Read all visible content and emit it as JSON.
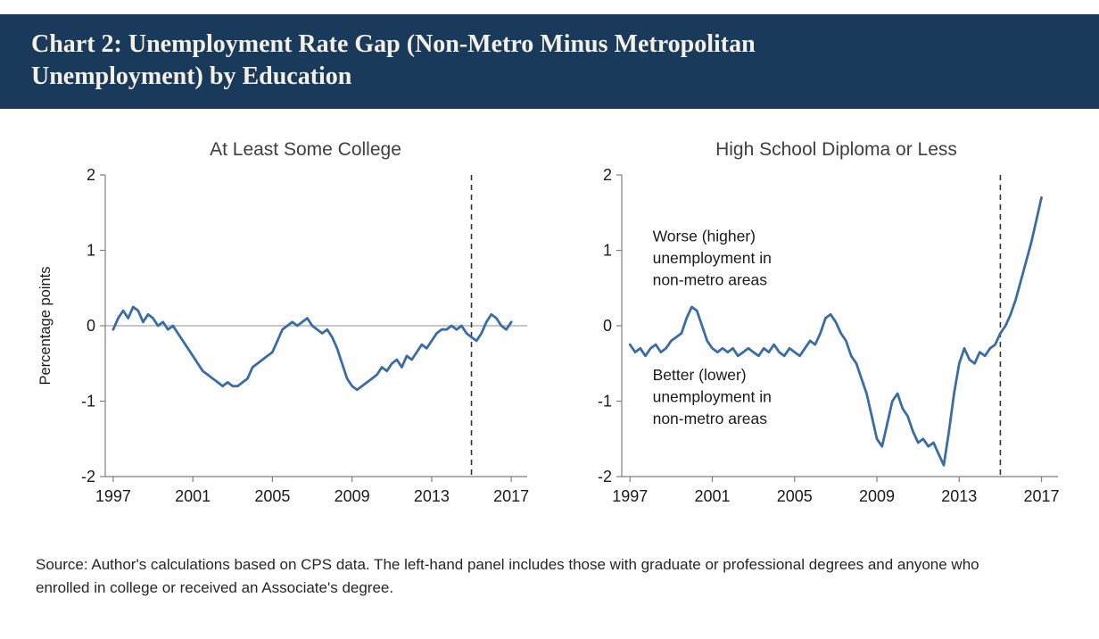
{
  "header": {
    "title": "Chart 2: Unemployment Rate Gap (Non-Metro Minus Metropolitan Unemployment) by Education"
  },
  "source": {
    "text": "Source: Author's calculations based on CPS data. The left-hand panel includes those with graduate or professional degrees and anyone who enrolled in college or received an Associate's degree."
  },
  "colors": {
    "header_bg": "#1a3a5c",
    "header_text": "#f4f0e4",
    "line": "#3a6ca5",
    "axis": "#7f7f7f",
    "zero_line": "#a6a6a6",
    "dashed_line": "#333333",
    "tick_text": "#1a1a1a"
  },
  "chart_data": [
    {
      "type": "line",
      "title": "At Least Some College",
      "ylabel": "Percentage points",
      "xlim": [
        1996.6,
        2017.8
      ],
      "ylim": [
        -2,
        2
      ],
      "xticks": [
        1997,
        2001,
        2005,
        2009,
        2013,
        2017
      ],
      "yticks": [
        -2,
        -1,
        0,
        1,
        2
      ],
      "zero_line": true,
      "dashed_vline_x": 2015,
      "x_start": 1997,
      "x_step": 0.25,
      "values": [
        -0.05,
        0.1,
        0.2,
        0.1,
        0.25,
        0.2,
        0.05,
        0.15,
        0.1,
        0.0,
        0.05,
        -0.05,
        0.0,
        -0.1,
        -0.2,
        -0.3,
        -0.4,
        -0.5,
        -0.6,
        -0.65,
        -0.7,
        -0.75,
        -0.8,
        -0.75,
        -0.8,
        -0.8,
        -0.75,
        -0.7,
        -0.55,
        -0.5,
        -0.45,
        -0.4,
        -0.35,
        -0.2,
        -0.05,
        0.0,
        0.05,
        0.0,
        0.05,
        0.1,
        0.0,
        -0.05,
        -0.1,
        -0.05,
        -0.15,
        -0.3,
        -0.5,
        -0.7,
        -0.8,
        -0.85,
        -0.8,
        -0.75,
        -0.7,
        -0.65,
        -0.55,
        -0.6,
        -0.5,
        -0.45,
        -0.55,
        -0.4,
        -0.45,
        -0.35,
        -0.25,
        -0.3,
        -0.2,
        -0.1,
        -0.05,
        -0.05,
        0.0,
        -0.05,
        0.0,
        -0.1,
        -0.15,
        -0.2,
        -0.1,
        0.05,
        0.15,
        0.1,
        0.0,
        -0.05,
        0.05
      ],
      "annotations": []
    },
    {
      "type": "line",
      "title": "High School Diploma or Less",
      "ylabel": "",
      "xlim": [
        1996.6,
        2017.8
      ],
      "ylim": [
        -2,
        2
      ],
      "xticks": [
        1997,
        2001,
        2005,
        2009,
        2013,
        2017
      ],
      "yticks": [
        -2,
        -1,
        0,
        1,
        2
      ],
      "zero_line": false,
      "dashed_vline_x": 2015,
      "x_start": 1997,
      "x_step": 0.25,
      "values": [
        -0.25,
        -0.35,
        -0.3,
        -0.4,
        -0.3,
        -0.25,
        -0.35,
        -0.3,
        -0.2,
        -0.15,
        -0.1,
        0.1,
        0.25,
        0.2,
        0.0,
        -0.2,
        -0.3,
        -0.35,
        -0.3,
        -0.35,
        -0.3,
        -0.4,
        -0.35,
        -0.3,
        -0.35,
        -0.4,
        -0.3,
        -0.35,
        -0.25,
        -0.35,
        -0.4,
        -0.3,
        -0.35,
        -0.4,
        -0.3,
        -0.2,
        -0.25,
        -0.1,
        0.1,
        0.15,
        0.05,
        -0.1,
        -0.2,
        -0.4,
        -0.5,
        -0.7,
        -0.9,
        -1.2,
        -1.5,
        -1.6,
        -1.3,
        -1.0,
        -0.9,
        -1.1,
        -1.2,
        -1.4,
        -1.55,
        -1.5,
        -1.6,
        -1.55,
        -1.7,
        -1.85,
        -1.4,
        -0.9,
        -0.5,
        -0.3,
        -0.45,
        -0.5,
        -0.35,
        -0.4,
        -0.3,
        -0.25,
        -0.1,
        0.0,
        0.15,
        0.35,
        0.6,
        0.85,
        1.1,
        1.4,
        1.7
      ],
      "annotations": [
        {
          "text": "Worse (higher)\nunemployment in\nnon-metro areas",
          "x": 1998.1,
          "y": 1.12
        },
        {
          "text": "Better (lower)\nunemployment in\nnon-metro areas",
          "x": 1998.1,
          "y": -0.72
        }
      ]
    }
  ]
}
